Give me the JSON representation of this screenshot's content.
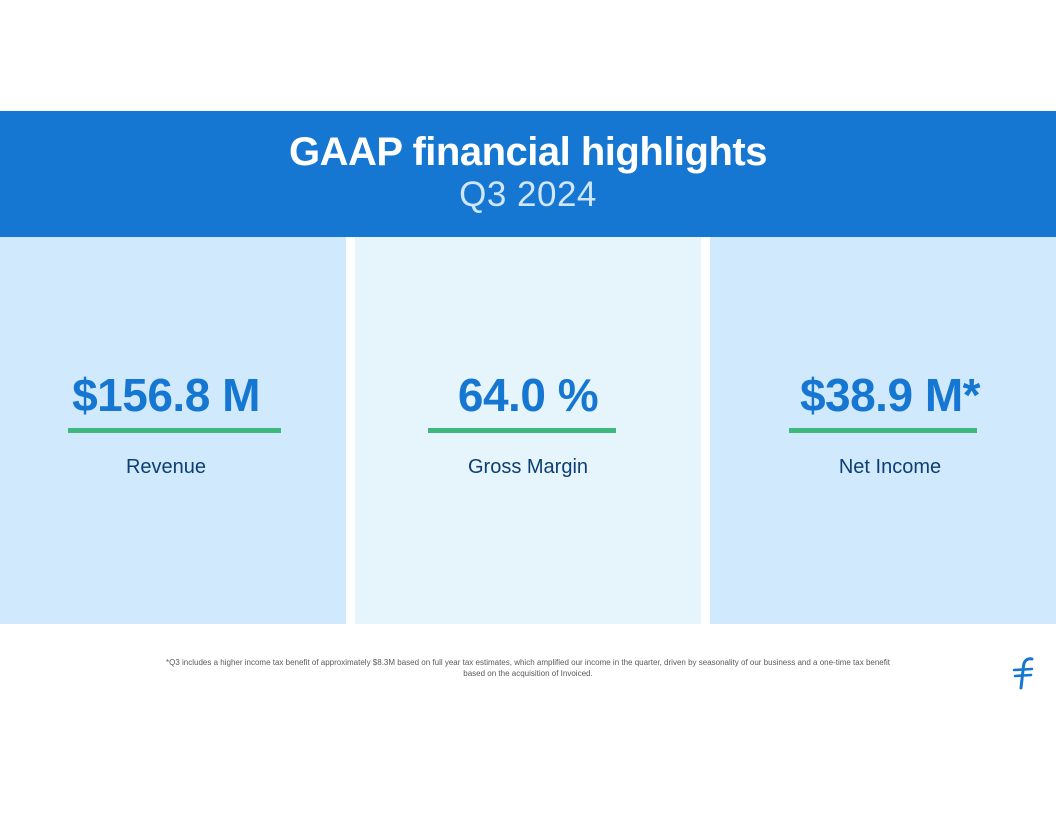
{
  "header": {
    "title": "GAAP financial highlights",
    "subtitle": "Q3 2024"
  },
  "metrics": [
    {
      "value": "$156.8 M",
      "label": "Revenue"
    },
    {
      "value": "64.0 %",
      "label": "Gross Margin"
    },
    {
      "value": "$38.9 M*",
      "label": "Net Income"
    }
  ],
  "footnote": {
    "line1": "*Q3 includes a higher income tax benefit of approximately $8.3M based on full year tax estimates, which amplified our income in the quarter, driven by seasonality of our business and a one-time tax benefit",
    "line2": "based on the acquisition of Invoiced."
  },
  "colors": {
    "banner": "#1677d2",
    "accent_green": "#3fb87f",
    "panel_light": "#d1e9fd",
    "panel_lighter": "#e6f4fc"
  },
  "icons": {
    "logo": "company-logo-icon"
  }
}
